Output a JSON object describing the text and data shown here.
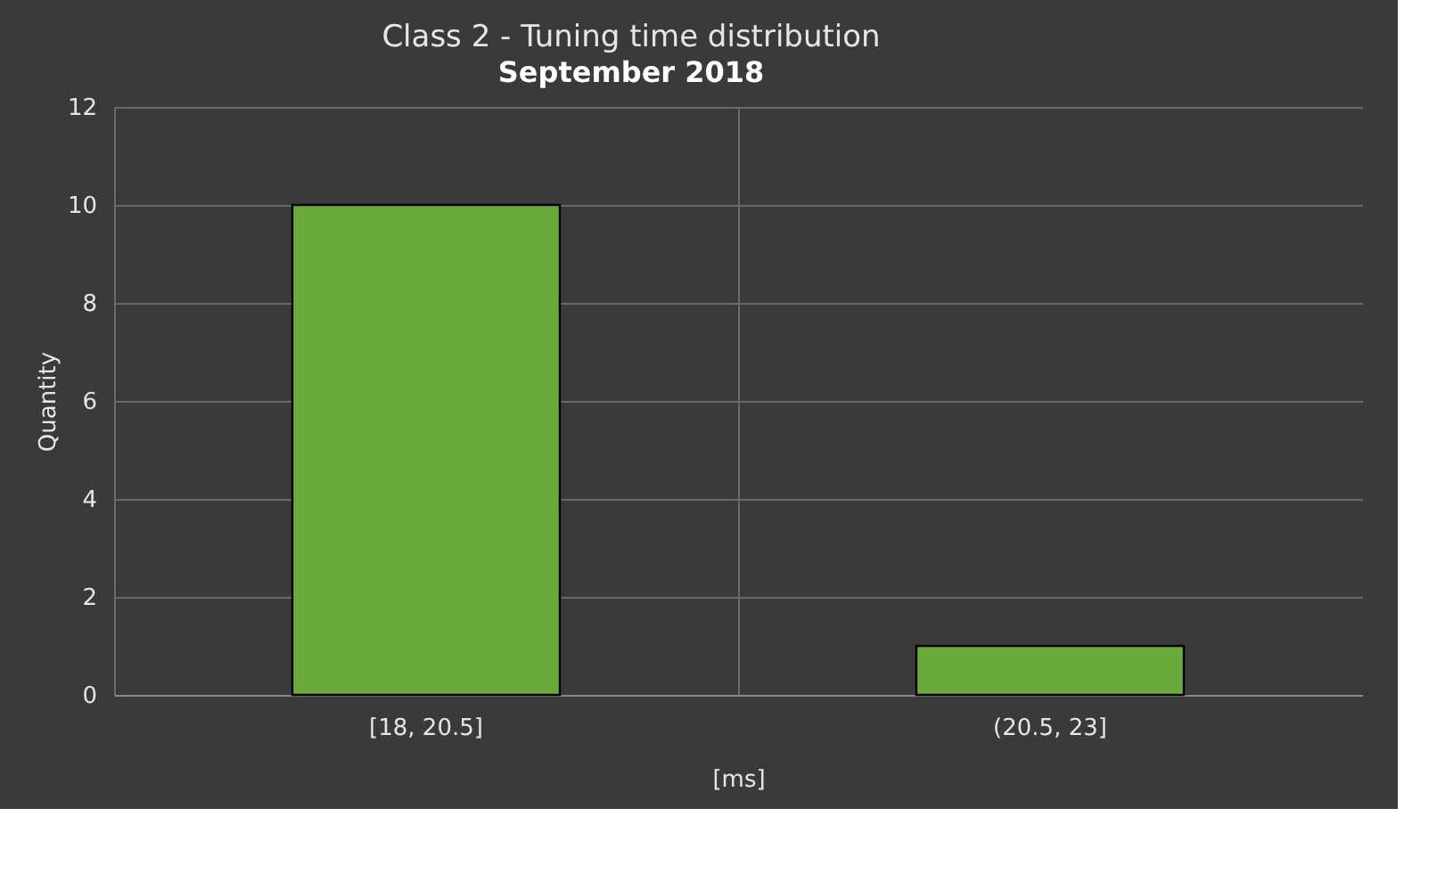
{
  "chart_data": {
    "type": "bar",
    "title": "Class 2 - Tuning time distribution",
    "subtitle": "September 2018",
    "xlabel": "[ms]",
    "ylabel": "Quantity",
    "categories": [
      "[18, 20.5]",
      "(20.5, 23]"
    ],
    "values": [
      10,
      1
    ],
    "color": "#6aaa3c",
    "ylim": [
      0,
      12
    ],
    "yticks": [
      0,
      2,
      4,
      6,
      8,
      10,
      12
    ],
    "grid": true
  }
}
